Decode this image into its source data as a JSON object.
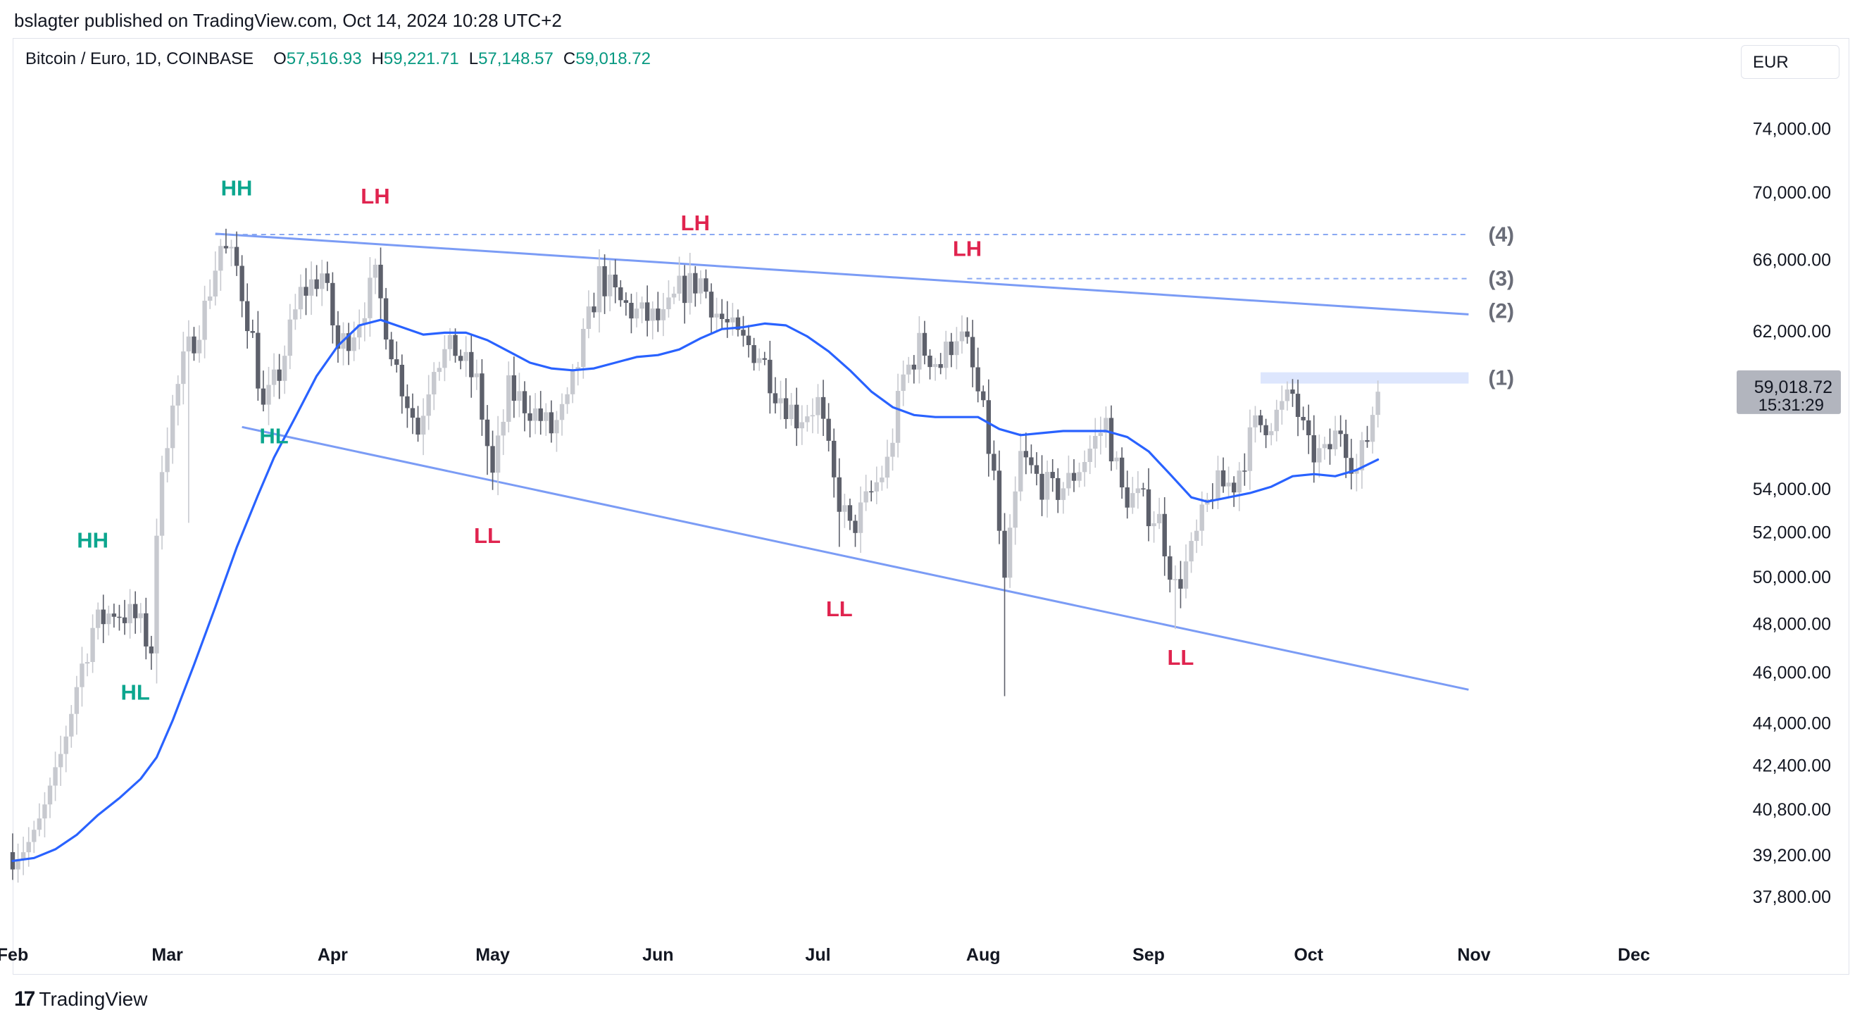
{
  "publisher": "bslagter published on TradingView.com, Oct 14, 2024 10:28 UTC+2",
  "header": {
    "symbol": "Bitcoin / Euro, 1D, COINBASE",
    "open_label": "O",
    "open": "57,516.93",
    "high_label": "H",
    "high": "59,221.71",
    "low_label": "L",
    "low": "57,148.57",
    "close_label": "C",
    "close": "59,018.72"
  },
  "currency_button": "EUR",
  "brand": "TradingView",
  "colors": {
    "up": "#c7c9cf",
    "down": "#5d606b",
    "ma": "#2962ff",
    "channel": "#7b9cf5",
    "label_green": "#0ca68e",
    "label_red": "#e0244f",
    "price_tag": "#b2b5be"
  },
  "chart_data": {
    "type": "candlestick",
    "title": "Bitcoin / Euro, 1D, COINBASE",
    "y_scale": "log",
    "ylim": [
      36500,
      80000
    ],
    "x_range": [
      "2024-02-01",
      "2024-12-20"
    ],
    "x_ticks": [
      {
        "label": "Feb",
        "date": "2024-02-01"
      },
      {
        "label": "Mar",
        "date": "2024-03-01"
      },
      {
        "label": "Apr",
        "date": "2024-04-01"
      },
      {
        "label": "May",
        "date": "2024-05-01"
      },
      {
        "label": "Jun",
        "date": "2024-06-01"
      },
      {
        "label": "Jul",
        "date": "2024-07-01"
      },
      {
        "label": "Aug",
        "date": "2024-08-01"
      },
      {
        "label": "Sep",
        "date": "2024-09-01"
      },
      {
        "label": "Oct",
        "date": "2024-10-01"
      },
      {
        "label": "Nov",
        "date": "2024-11-01"
      },
      {
        "label": "Dec",
        "date": "2024-12-01"
      }
    ],
    "y_ticks": [
      {
        "value": 74000,
        "label": "74,000.00"
      },
      {
        "value": 70000,
        "label": "70,000.00"
      },
      {
        "value": 66000,
        "label": "66,000.00"
      },
      {
        "value": 62000,
        "label": "62,000.00"
      },
      {
        "value": 54000,
        "label": "54,000.00"
      },
      {
        "value": 52000,
        "label": "52,000.00"
      },
      {
        "value": 50000,
        "label": "50,000.00"
      },
      {
        "value": 48000,
        "label": "48,000.00"
      },
      {
        "value": 46000,
        "label": "46,000.00"
      },
      {
        "value": 44000,
        "label": "44,000.00"
      },
      {
        "value": 42400,
        "label": "42,400.00"
      },
      {
        "value": 40800,
        "label": "40,800.00"
      },
      {
        "value": 39200,
        "label": "39,200.00"
      },
      {
        "value": 37800,
        "label": "37,800.00"
      }
    ],
    "close_path": [
      [
        "2024-02-01",
        39300
      ],
      [
        "2024-02-05",
        39700
      ],
      [
        "2024-02-09",
        41800
      ],
      [
        "2024-02-13",
        45500
      ],
      [
        "2024-02-16",
        47800
      ],
      [
        "2024-02-20",
        48600
      ],
      [
        "2024-02-24",
        48200
      ],
      [
        "2024-02-27",
        47000
      ],
      [
        "2024-02-29",
        55500
      ],
      [
        "2024-03-04",
        60200
      ],
      [
        "2024-03-08",
        63200
      ],
      [
        "2024-03-11",
        66800
      ],
      [
        "2024-03-14",
        65500
      ],
      [
        "2024-03-17",
        61500
      ],
      [
        "2024-03-19",
        57800
      ],
      [
        "2024-03-22",
        59800
      ],
      [
        "2024-03-26",
        64000
      ],
      [
        "2024-03-30",
        65200
      ],
      [
        "2024-04-02",
        61000
      ],
      [
        "2024-04-05",
        62200
      ],
      [
        "2024-04-09",
        64800
      ],
      [
        "2024-04-13",
        60000
      ],
      [
        "2024-04-17",
        56800
      ],
      [
        "2024-04-20",
        60500
      ],
      [
        "2024-04-24",
        61000
      ],
      [
        "2024-04-28",
        59200
      ],
      [
        "2024-05-01",
        54500
      ],
      [
        "2024-05-04",
        58800
      ],
      [
        "2024-05-08",
        58000
      ],
      [
        "2024-05-12",
        56800
      ],
      [
        "2024-05-15",
        58000
      ],
      [
        "2024-05-19",
        62500
      ],
      [
        "2024-05-21",
        65000
      ],
      [
        "2024-05-25",
        63500
      ],
      [
        "2024-05-29",
        62800
      ],
      [
        "2024-06-02",
        62500
      ],
      [
        "2024-06-05",
        64200
      ],
      [
        "2024-06-09",
        64800
      ],
      [
        "2024-06-12",
        63000
      ],
      [
        "2024-06-16",
        61500
      ],
      [
        "2024-06-20",
        60800
      ],
      [
        "2024-06-23",
        59000
      ],
      [
        "2024-06-27",
        57500
      ],
      [
        "2024-07-01",
        58200
      ],
      [
        "2024-07-04",
        54200
      ],
      [
        "2024-07-07",
        52000
      ],
      [
        "2024-07-10",
        53300
      ],
      [
        "2024-07-14",
        55200
      ],
      [
        "2024-07-17",
        59500
      ],
      [
        "2024-07-20",
        61200
      ],
      [
        "2024-07-24",
        60200
      ],
      [
        "2024-07-27",
        62000
      ],
      [
        "2024-07-29",
        61000
      ],
      [
        "2024-08-01",
        57500
      ],
      [
        "2024-08-03",
        54500
      ],
      [
        "2024-08-05",
        49500
      ],
      [
        "2024-08-08",
        55500
      ],
      [
        "2024-08-11",
        54500
      ],
      [
        "2024-08-14",
        53800
      ],
      [
        "2024-08-17",
        54300
      ],
      [
        "2024-08-20",
        55500
      ],
      [
        "2024-08-24",
        57200
      ],
      [
        "2024-08-27",
        53800
      ],
      [
        "2024-08-30",
        53500
      ],
      [
        "2024-09-03",
        52500
      ],
      [
        "2024-09-06",
        49500
      ],
      [
        "2024-09-09",
        51000
      ],
      [
        "2024-09-13",
        54000
      ],
      [
        "2024-09-17",
        54300
      ],
      [
        "2024-09-21",
        57000
      ],
      [
        "2024-09-25",
        57600
      ],
      [
        "2024-09-28",
        58600
      ],
      [
        "2024-10-01",
        55800
      ],
      [
        "2024-10-04",
        55500
      ],
      [
        "2024-10-07",
        57000
      ],
      [
        "2024-10-10",
        54800
      ],
      [
        "2024-10-12",
        56500
      ],
      [
        "2024-10-14",
        59018.72
      ]
    ],
    "ma_line": [
      [
        "2024-02-01",
        39000
      ],
      [
        "2024-02-05",
        39100
      ],
      [
        "2024-02-09",
        39400
      ],
      [
        "2024-02-13",
        39900
      ],
      [
        "2024-02-17",
        40600
      ],
      [
        "2024-02-21",
        41200
      ],
      [
        "2024-02-25",
        41900
      ],
      [
        "2024-02-28",
        42700
      ],
      [
        "2024-03-02",
        44100
      ],
      [
        "2024-03-06",
        46300
      ],
      [
        "2024-03-10",
        48700
      ],
      [
        "2024-03-14",
        51300
      ],
      [
        "2024-03-18",
        53700
      ],
      [
        "2024-03-21",
        55500
      ],
      [
        "2024-03-25",
        57500
      ],
      [
        "2024-03-29",
        59600
      ],
      [
        "2024-04-02",
        61200
      ],
      [
        "2024-04-06",
        62300
      ],
      [
        "2024-04-10",
        62600
      ],
      [
        "2024-04-14",
        62200
      ],
      [
        "2024-04-18",
        61800
      ],
      [
        "2024-04-22",
        61900
      ],
      [
        "2024-04-26",
        61900
      ],
      [
        "2024-04-30",
        61500
      ],
      [
        "2024-05-04",
        60900
      ],
      [
        "2024-05-08",
        60300
      ],
      [
        "2024-05-12",
        60000
      ],
      [
        "2024-05-16",
        59900
      ],
      [
        "2024-05-20",
        60000
      ],
      [
        "2024-05-24",
        60300
      ],
      [
        "2024-05-28",
        60600
      ],
      [
        "2024-06-01",
        60700
      ],
      [
        "2024-06-05",
        61000
      ],
      [
        "2024-06-09",
        61600
      ],
      [
        "2024-06-13",
        62100
      ],
      [
        "2024-06-17",
        62200
      ],
      [
        "2024-06-21",
        62400
      ],
      [
        "2024-06-25",
        62300
      ],
      [
        "2024-06-29",
        61700
      ],
      [
        "2024-07-03",
        60900
      ],
      [
        "2024-07-07",
        59900
      ],
      [
        "2024-07-11",
        58800
      ],
      [
        "2024-07-15",
        58000
      ],
      [
        "2024-07-19",
        57600
      ],
      [
        "2024-07-23",
        57500
      ],
      [
        "2024-07-27",
        57500
      ],
      [
        "2024-07-31",
        57500
      ],
      [
        "2024-08-04",
        56900
      ],
      [
        "2024-08-08",
        56600
      ],
      [
        "2024-08-12",
        56700
      ],
      [
        "2024-08-16",
        56800
      ],
      [
        "2024-08-20",
        56800
      ],
      [
        "2024-08-24",
        56800
      ],
      [
        "2024-08-28",
        56500
      ],
      [
        "2024-09-01",
        55800
      ],
      [
        "2024-09-05",
        54700
      ],
      [
        "2024-09-09",
        53600
      ],
      [
        "2024-09-12",
        53400
      ],
      [
        "2024-09-16",
        53600
      ],
      [
        "2024-09-20",
        53800
      ],
      [
        "2024-09-24",
        54100
      ],
      [
        "2024-09-28",
        54600
      ],
      [
        "2024-10-02",
        54700
      ],
      [
        "2024-10-06",
        54600
      ],
      [
        "2024-10-10",
        54900
      ],
      [
        "2024-10-14",
        55400
      ]
    ],
    "trendlines": [
      {
        "name": "upper-channel",
        "from": [
          "2024-03-10",
          67500
        ],
        "to": [
          "2024-10-31",
          62900
        ]
      },
      {
        "name": "lower-channel",
        "from": [
          "2024-03-15",
          57000
        ],
        "to": [
          "2024-10-31",
          45300
        ]
      }
    ],
    "levels": [
      {
        "label": "(4)",
        "value": 67450,
        "from": "2024-03-10",
        "to": "2024-10-31",
        "style": "dashed"
      },
      {
        "label": "(3)",
        "value": 64900,
        "from": "2024-07-29",
        "to": "2024-10-31",
        "style": "dashed"
      },
      {
        "label": "(2)",
        "value": 63100,
        "style": "line-end"
      },
      {
        "label": "(1)",
        "value": 59500,
        "from": "2024-09-22",
        "to": "2024-10-31",
        "style": "zone"
      }
    ],
    "annotations": [
      {
        "text": "HH",
        "date": "2024-02-16",
        "value": 51300,
        "kind": "bull"
      },
      {
        "text": "HL",
        "date": "2024-02-24",
        "value": 44900,
        "kind": "bull"
      },
      {
        "text": "HH",
        "date": "2024-03-14",
        "value": 69800,
        "kind": "bull"
      },
      {
        "text": "HL",
        "date": "2024-03-21",
        "value": 56200,
        "kind": "bull"
      },
      {
        "text": "LH",
        "date": "2024-04-09",
        "value": 69300,
        "kind": "bear"
      },
      {
        "text": "LL",
        "date": "2024-04-30",
        "value": 51500,
        "kind": "bear"
      },
      {
        "text": "LH",
        "date": "2024-06-08",
        "value": 67700,
        "kind": "bear"
      },
      {
        "text": "LL",
        "date": "2024-07-05",
        "value": 48300,
        "kind": "bear"
      },
      {
        "text": "LH",
        "date": "2024-07-29",
        "value": 66200,
        "kind": "bear"
      },
      {
        "text": "LL",
        "date": "2024-09-07",
        "value": 46300,
        "kind": "bear"
      }
    ],
    "last_price": {
      "value": 59018.72,
      "label": "59,018.72",
      "countdown": "15:31:29"
    }
  }
}
